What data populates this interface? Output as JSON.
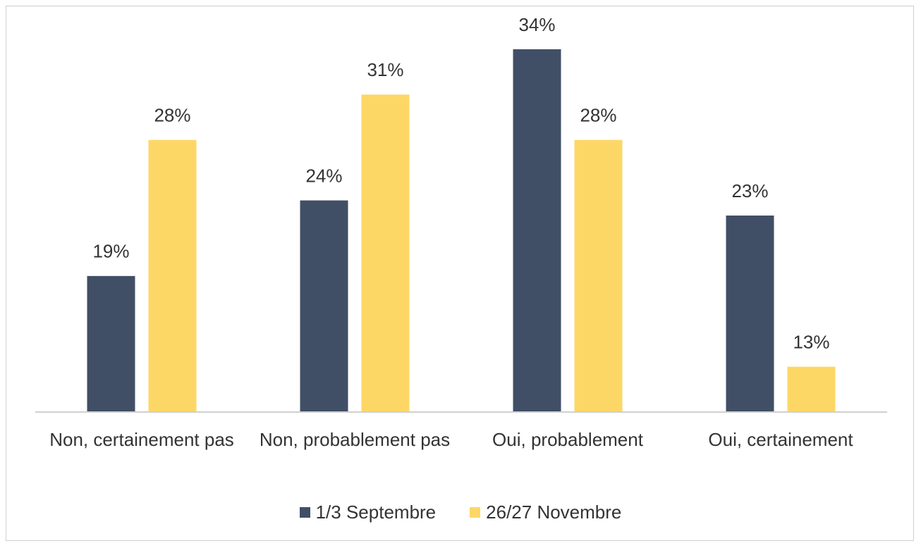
{
  "chart_data": {
    "type": "bar",
    "categories": [
      "Non, certainement pas",
      "Non, probablement pas",
      "Oui, probablement",
      "Oui, certainement"
    ],
    "series": [
      {
        "name": "1/3 Septembre",
        "color": "#414f66",
        "values": [
          19,
          24,
          34,
          23
        ],
        "value_labels": [
          "19%",
          "24%",
          "34%",
          "23%"
        ]
      },
      {
        "name": "26/27 Novembre",
        "color": "#fdd766",
        "values": [
          28,
          31,
          28,
          13
        ],
        "value_labels": [
          "28%",
          "31%",
          "28%",
          "13%"
        ]
      }
    ],
    "ylim": [
      10,
      36
    ],
    "legend": "bottom"
  }
}
